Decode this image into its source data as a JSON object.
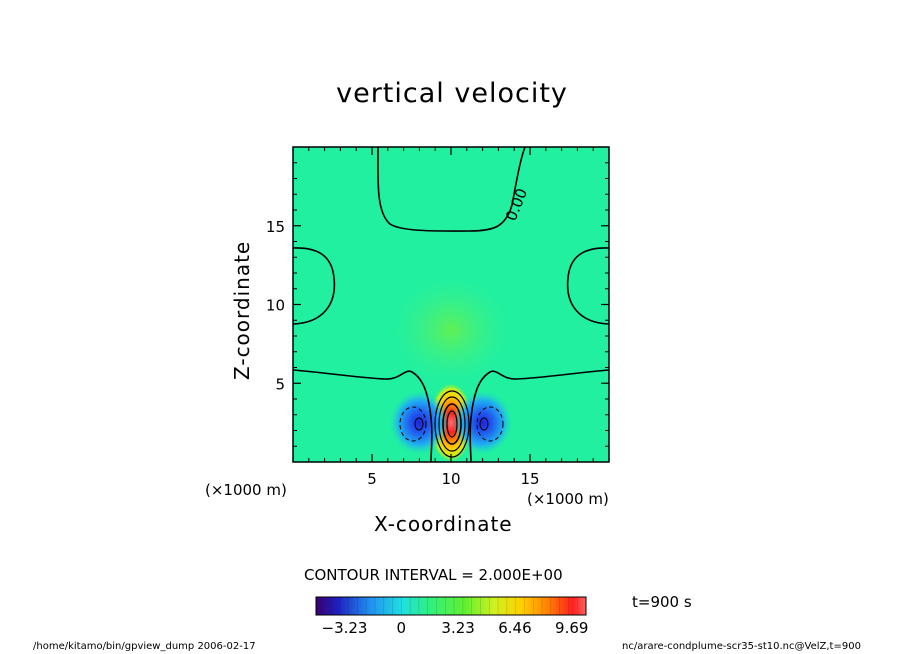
{
  "chart_data": {
    "type": "heatmap",
    "title": "vertical velocity",
    "xlabel": "X-coordinate",
    "ylabel": "Z-coordinate",
    "x_unit_label": "(×1000 m)",
    "z_unit_label": "(×1000 m)",
    "xlim": [
      0,
      20
    ],
    "ylim": [
      0,
      20
    ],
    "x_ticks": [
      5,
      10,
      15
    ],
    "y_ticks": [
      5,
      10,
      15
    ],
    "contour_interval_text": "CONTOUR INTERVAL = 2.000E+00",
    "contour_label": "0.00",
    "time_text": "t=900 s",
    "colorbar": {
      "range": [
        -4.85,
        10.5
      ],
      "tick_values": [
        -3.23,
        0,
        3.23,
        6.46,
        9.69
      ],
      "tick_labels": [
        "−3.23",
        "0",
        "3.23",
        "6.46",
        "9.69"
      ]
    },
    "features": [
      {
        "kind": "updraft",
        "x": 10,
        "z": 2.5,
        "peak": 9.69
      },
      {
        "kind": "downdraft",
        "x": 8,
        "z": 2.5,
        "peak": -3.23
      },
      {
        "kind": "downdraft",
        "x": 12,
        "z": 2.5,
        "peak": -3.23
      }
    ]
  },
  "footer": {
    "left": "/home/kitamo/bin/gpview_dump  2006-02-17",
    "right": "nc/arare-condplume-scr35-st10.nc@VelZ,t=900"
  }
}
